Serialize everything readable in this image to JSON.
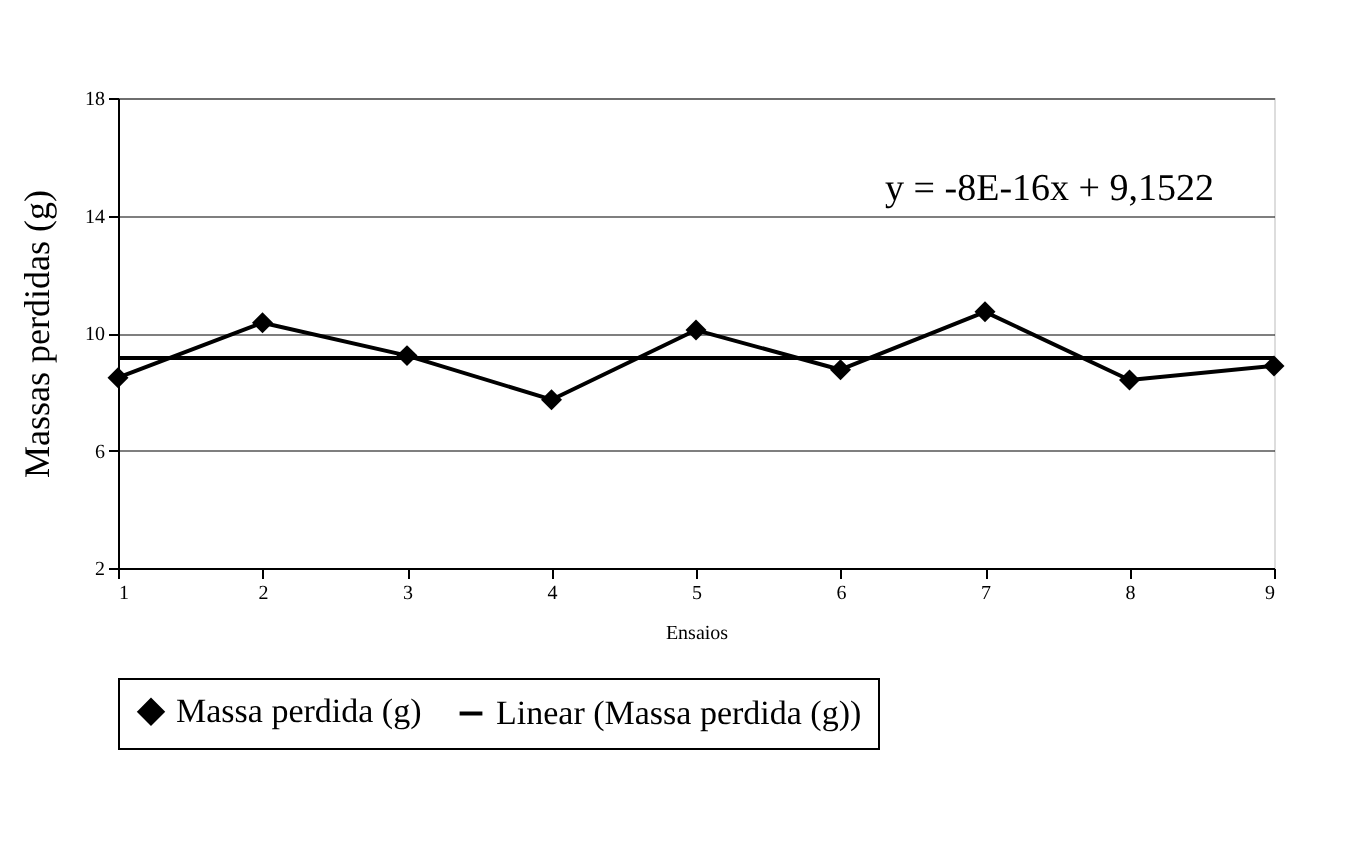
{
  "chart_data": {
    "type": "line",
    "xlabel": "Ensaios",
    "ylabel": "Massas perdidas (g)",
    "x": [
      1,
      2,
      3,
      4,
      5,
      6,
      7,
      8,
      9
    ],
    "xlim": [
      1,
      9
    ],
    "xticks": [
      1,
      2,
      3,
      4,
      5,
      6,
      7,
      8,
      9
    ],
    "ylim": [
      2,
      18
    ],
    "yticks": [
      2,
      6,
      10,
      14,
      18
    ],
    "grid": "y",
    "legend": "bottom",
    "series": [
      {
        "name": "Massa perdida (g)",
        "color": "#000000",
        "marker": "diamond",
        "values": [
          8.48,
          10.35,
          9.23,
          7.73,
          10.1,
          8.75,
          10.72,
          8.4,
          8.88
        ]
      },
      {
        "name": "Linear (Massa perdida (g))",
        "color": "#000000",
        "type": "line",
        "marker": "none",
        "x": [
          1,
          9
        ],
        "values": [
          9.1522,
          9.1522
        ]
      }
    ],
    "annotations": [
      "y = -8E-16x + 9,1522"
    ]
  }
}
